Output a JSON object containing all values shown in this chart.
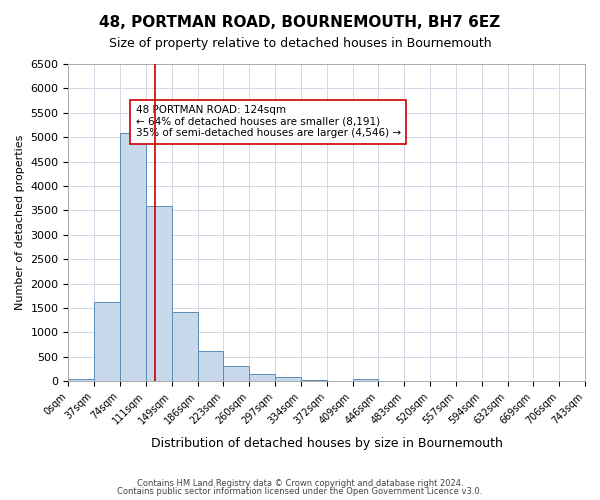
{
  "title": "48, PORTMAN ROAD, BOURNEMOUTH, BH7 6EZ",
  "subtitle": "Size of property relative to detached houses in Bournemouth",
  "xlabel": "Distribution of detached houses by size in Bournemouth",
  "ylabel": "Number of detached properties",
  "bin_edges": [
    0,
    37,
    74,
    111,
    148,
    185,
    222,
    259,
    296,
    333,
    370,
    407,
    444,
    481,
    518,
    555,
    592,
    629,
    666,
    703,
    740
  ],
  "bin_labels": [
    "0sqm",
    "37sqm",
    "74sqm",
    "111sqm",
    "149sqm",
    "186sqm",
    "223sqm",
    "260sqm",
    "297sqm",
    "334sqm",
    "372sqm",
    "409sqm",
    "446sqm",
    "483sqm",
    "520sqm",
    "557sqm",
    "594sqm",
    "632sqm",
    "669sqm",
    "706sqm",
    "743sqm"
  ],
  "counts": [
    50,
    1630,
    5080,
    3580,
    1420,
    615,
    310,
    155,
    85,
    20,
    0,
    50,
    0,
    0,
    0,
    0,
    0,
    0,
    0,
    0
  ],
  "bar_fill": "#c9d9ec",
  "bar_edge": "#5b8db8",
  "vline_x": 124,
  "vline_color": "#cc0000",
  "annotation_text": "48 PORTMAN ROAD: 124sqm\n← 64% of detached houses are smaller (8,191)\n35% of semi-detached houses are larger (4,546) →",
  "annotation_box_edge": "#cc0000",
  "ylim": [
    0,
    6500
  ],
  "yticks": [
    0,
    500,
    1000,
    1500,
    2000,
    2500,
    3000,
    3500,
    4000,
    4500,
    5000,
    5500,
    6000,
    6500
  ],
  "grid_color": "#d0d8e8",
  "background_color": "#ffffff",
  "footer_line1": "Contains HM Land Registry data © Crown copyright and database right 2024.",
  "footer_line2": "Contains public sector information licensed under the Open Government Licence v3.0."
}
